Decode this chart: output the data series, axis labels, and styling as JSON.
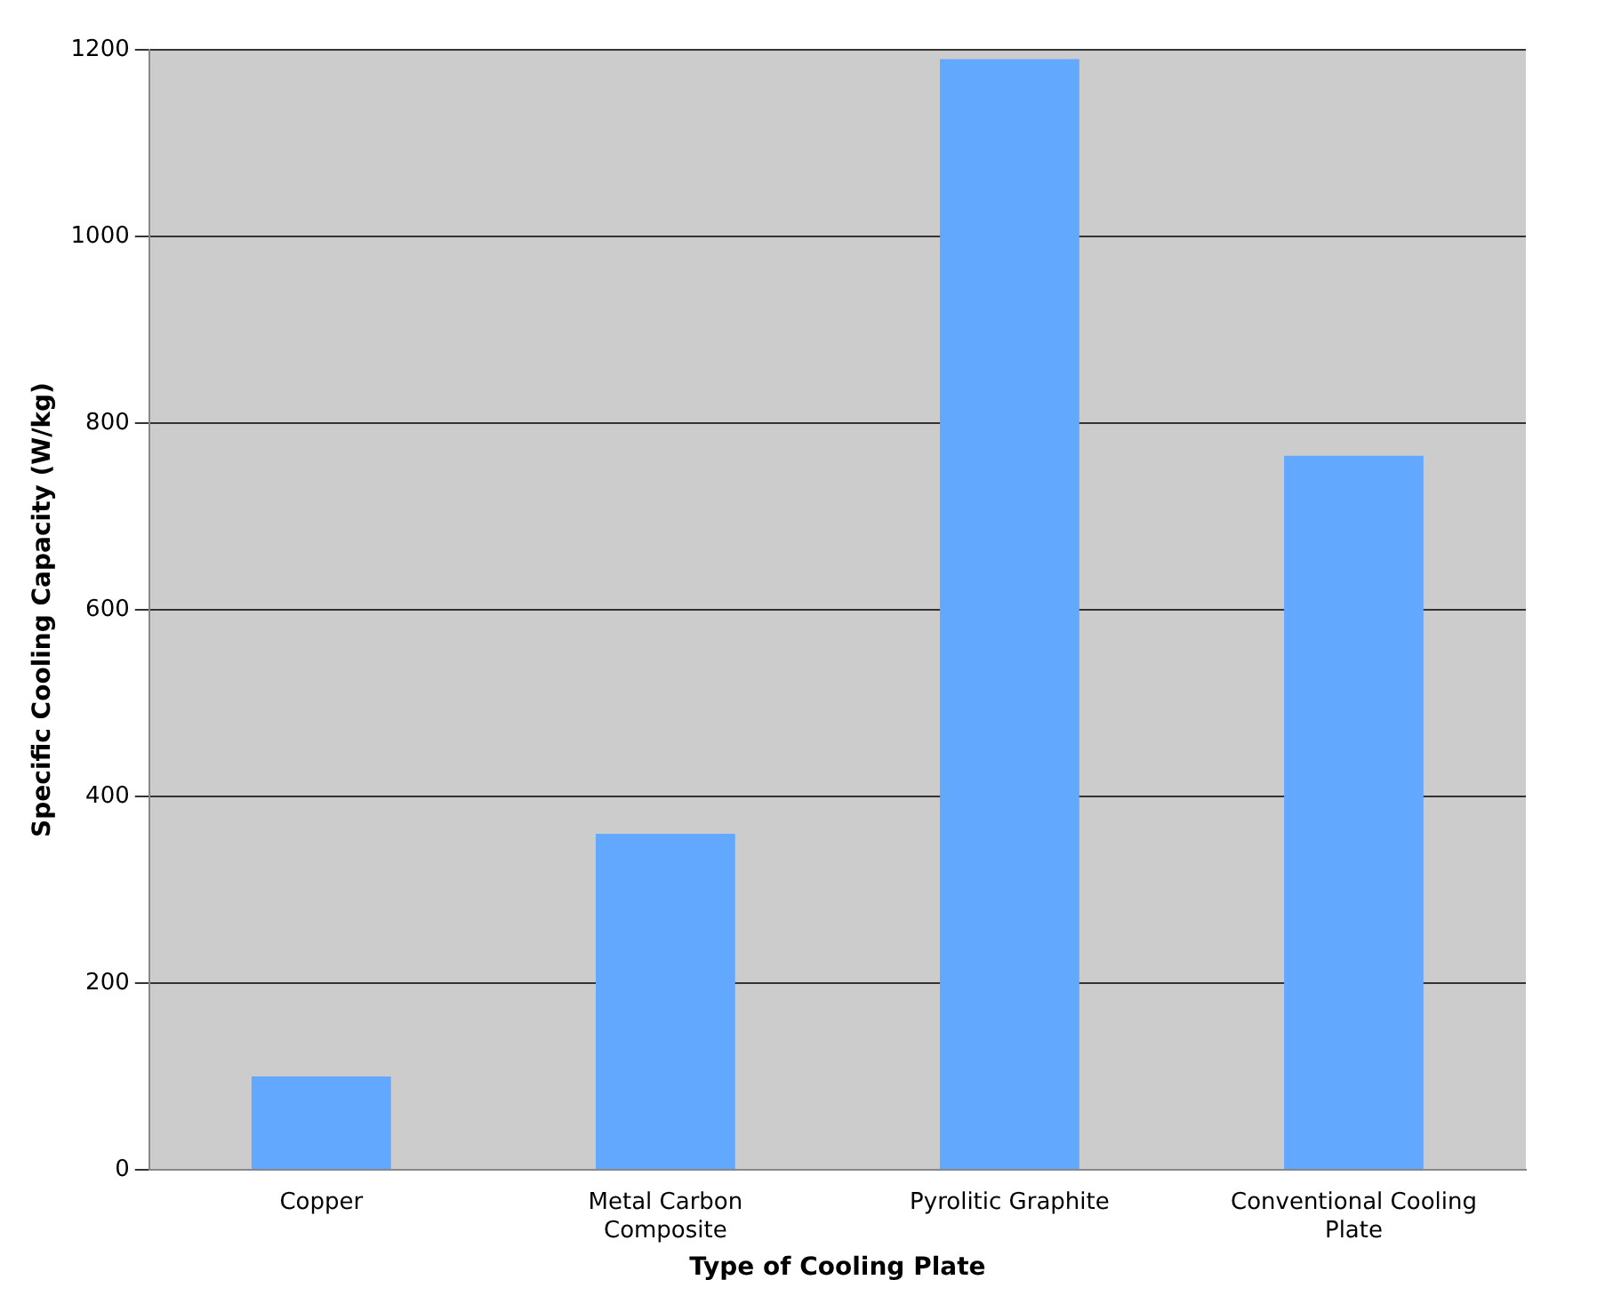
{
  "chart_data": {
    "type": "bar",
    "xlabel": "Type of Cooling Plate",
    "ylabel": "Specific Cooling Capacity (W/kg)",
    "categories": [
      "Copper",
      "Metal Carbon Composite",
      "Pyrolitic Graphite",
      "Conventional Cooling Plate"
    ],
    "values": [
      100,
      360,
      1190,
      765
    ],
    "color": "#62a8ff",
    "ylim": [
      0,
      1200
    ],
    "yticks": [
      0,
      200,
      400,
      600,
      800,
      1000,
      1200
    ],
    "grid": "y",
    "legend": false
  }
}
